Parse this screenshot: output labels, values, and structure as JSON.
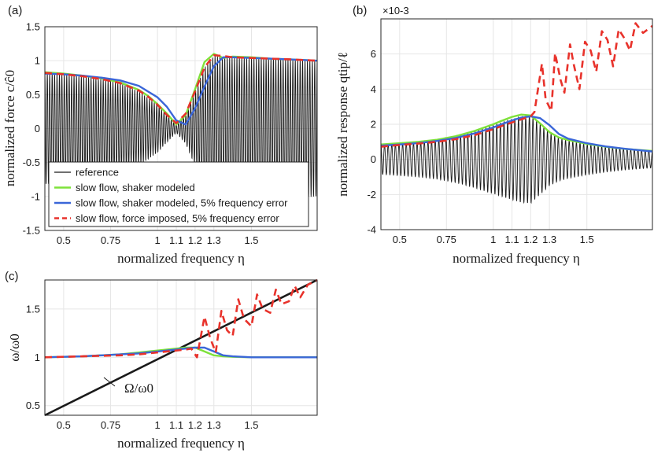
{
  "colors": {
    "reference": "#1a1a1a",
    "shaker_modeled": "#7ee23a",
    "shaker_modeled_error": "#3a66d8",
    "force_imposed_error": "#e8322b",
    "grid": "#e6e6e6"
  },
  "chart_data": [
    {
      "id": "a",
      "type": "line",
      "panel_label": "(a)",
      "xlabel": "normalized frequency η",
      "ylabel": "normalized force c/ĉ0",
      "xlim": [
        0.4,
        1.85
      ],
      "ylim": [
        -1.5,
        1.5
      ],
      "xticks": [
        0.5,
        0.75,
        1,
        1.1,
        1.2,
        1.3,
        1.5
      ],
      "xtick_labels": [
        "0.5",
        "0.75",
        "1",
        "1.1",
        "1.2",
        "1.3",
        "1.5"
      ],
      "yticks": [
        -1.5,
        -1,
        -0.5,
        0,
        0.5,
        1,
        1.5
      ],
      "ytick_labels": [
        "-1.5",
        "-1",
        "-0.5",
        "0",
        "0.5",
        "1",
        "1.5"
      ],
      "legend": {
        "placement": "bottom-left",
        "entries": [
          {
            "key": "reference",
            "label": "reference"
          },
          {
            "key": "shaker_modeled",
            "label": "slow flow, shaker modeled"
          },
          {
            "key": "shaker_modeled_error",
            "label": "slow flow, shaker modeled, 5% frequency error"
          },
          {
            "key": "force_imposed_error",
            "label": "slow flow, force imposed, 5% frequency error"
          }
        ]
      },
      "reference_oscillation": {
        "cycles": 112,
        "center": 0,
        "description": "oscillation bounded by ± envelope"
      },
      "series": [
        {
          "key": "shaker_modeled",
          "x": [
            0.4,
            0.5,
            0.6,
            0.7,
            0.8,
            0.9,
            0.95,
            1.0,
            1.05,
            1.1,
            1.15,
            1.2,
            1.25,
            1.3,
            1.35,
            1.4,
            1.5,
            1.6,
            1.7,
            1.85
          ],
          "y": [
            0.83,
            0.81,
            0.78,
            0.74,
            0.68,
            0.57,
            0.48,
            0.36,
            0.22,
            0.06,
            0.2,
            0.58,
            0.98,
            1.1,
            1.04,
            1.06,
            1.05,
            1.03,
            1.02,
            1.0
          ]
        },
        {
          "key": "shaker_modeled_error",
          "x": [
            0.4,
            0.5,
            0.6,
            0.7,
            0.8,
            0.9,
            1.0,
            1.05,
            1.1,
            1.15,
            1.2,
            1.25,
            1.3,
            1.35,
            1.4,
            1.5,
            1.6,
            1.7,
            1.85
          ],
          "y": [
            0.81,
            0.8,
            0.78,
            0.75,
            0.71,
            0.63,
            0.46,
            0.32,
            0.12,
            0.06,
            0.3,
            0.62,
            0.92,
            1.05,
            1.05,
            1.04,
            1.03,
            1.02,
            1.0
          ]
        },
        {
          "key": "force_imposed_error",
          "x": [
            0.4,
            0.5,
            0.6,
            0.7,
            0.8,
            0.9,
            0.95,
            1.0,
            1.05,
            1.1,
            1.15,
            1.2,
            1.25,
            1.3,
            1.35,
            1.4,
            1.5,
            1.6,
            1.7,
            1.85
          ],
          "y": [
            0.82,
            0.8,
            0.77,
            0.73,
            0.67,
            0.56,
            0.47,
            0.35,
            0.2,
            0.08,
            0.22,
            0.55,
            0.9,
            1.08,
            1.07,
            1.05,
            1.04,
            1.03,
            1.02,
            1.0
          ]
        }
      ],
      "reference_envelope": {
        "x": [
          0.4,
          0.5,
          0.6,
          0.7,
          0.8,
          0.9,
          1.0,
          1.05,
          1.1,
          1.15,
          1.2,
          1.25,
          1.3,
          1.35,
          1.4,
          1.5,
          1.6,
          1.7,
          1.85
        ],
        "amp": [
          0.82,
          0.8,
          0.77,
          0.73,
          0.67,
          0.55,
          0.35,
          0.2,
          0.06,
          0.22,
          0.55,
          0.9,
          1.07,
          1.06,
          1.05,
          1.04,
          1.03,
          1.02,
          1.0
        ]
      }
    },
    {
      "id": "b",
      "type": "line",
      "panel_label": "(b)",
      "xlabel": "normalized frequency η",
      "ylabel": "normalized response qtip/ℓ",
      "y_exponent": "×10-3",
      "xlim": [
        0.4,
        1.85
      ],
      "ylim": [
        -4,
        8
      ],
      "xticks": [
        0.5,
        0.75,
        1,
        1.1,
        1.2,
        1.3,
        1.5
      ],
      "xtick_labels": [
        "0.5",
        "0.75",
        "1",
        "1.1",
        "1.2",
        "1.3",
        "1.5"
      ],
      "yticks": [
        -4,
        -2,
        0,
        2,
        4,
        6
      ],
      "ytick_labels": [
        "-4",
        "-2",
        "0",
        "2",
        "4",
        "6"
      ],
      "reference_oscillation": {
        "cycles": 75,
        "center": 0,
        "description": "oscillation bounded by ± envelope"
      },
      "series": [
        {
          "key": "shaker_modeled",
          "x": [
            0.4,
            0.5,
            0.6,
            0.7,
            0.8,
            0.9,
            1.0,
            1.05,
            1.1,
            1.15,
            1.2,
            1.25,
            1.3,
            1.35,
            1.4,
            1.5,
            1.6,
            1.7,
            1.85
          ],
          "y": [
            0.85,
            0.92,
            1.0,
            1.12,
            1.32,
            1.62,
            2.0,
            2.22,
            2.42,
            2.55,
            2.5,
            2.05,
            1.55,
            1.25,
            1.1,
            0.88,
            0.72,
            0.6,
            0.48
          ]
        },
        {
          "key": "shaker_modeled_error",
          "x": [
            0.4,
            0.5,
            0.6,
            0.7,
            0.8,
            0.9,
            1.0,
            1.05,
            1.1,
            1.15,
            1.2,
            1.25,
            1.3,
            1.35,
            1.4,
            1.5,
            1.6,
            1.7,
            1.85
          ],
          "y": [
            0.78,
            0.85,
            0.93,
            1.05,
            1.22,
            1.48,
            1.82,
            2.02,
            2.22,
            2.38,
            2.45,
            2.35,
            1.95,
            1.45,
            1.18,
            0.92,
            0.74,
            0.61,
            0.45
          ]
        },
        {
          "key": "force_imposed_error",
          "x": [
            0.4,
            0.5,
            0.6,
            0.7,
            0.8,
            0.9,
            1.0,
            1.05,
            1.1,
            1.15,
            1.2,
            1.22,
            1.26,
            1.28,
            1.31,
            1.33,
            1.36,
            1.38,
            1.41,
            1.43,
            1.46,
            1.49,
            1.52,
            1.55,
            1.58,
            1.61,
            1.64,
            1.67,
            1.7,
            1.73,
            1.76,
            1.8,
            1.85
          ],
          "y": [
            0.72,
            0.82,
            0.9,
            1.0,
            1.15,
            1.38,
            1.72,
            1.92,
            2.1,
            2.28,
            2.45,
            2.7,
            5.45,
            3.4,
            2.75,
            6.05,
            4.5,
            3.8,
            6.55,
            5.4,
            4.0,
            6.7,
            6.2,
            5.0,
            7.3,
            6.8,
            5.3,
            7.4,
            6.9,
            6.2,
            7.75,
            7.2,
            7.6
          ]
        }
      ],
      "reference_envelope": {
        "x": [
          0.4,
          0.5,
          0.6,
          0.7,
          0.8,
          0.9,
          1.0,
          1.1,
          1.15,
          1.2,
          1.25,
          1.3,
          1.35,
          1.4,
          1.5,
          1.6,
          1.7,
          1.85
        ],
        "amp": [
          0.85,
          0.92,
          1.0,
          1.12,
          1.32,
          1.62,
          1.95,
          2.3,
          2.45,
          2.5,
          2.0,
          1.5,
          1.22,
          1.08,
          0.88,
          0.72,
          0.6,
          0.48
        ]
      }
    },
    {
      "id": "c",
      "type": "line",
      "panel_label": "(c)",
      "xlabel": "normalized frequency η",
      "ylabel": "ω/ω0",
      "annotation": "Ω/ω0",
      "xlim": [
        0.4,
        1.85
      ],
      "ylim": [
        0.4,
        1.8
      ],
      "xticks": [
        0.5,
        0.75,
        1,
        1.1,
        1.2,
        1.3,
        1.5
      ],
      "xtick_labels": [
        "0.5",
        "0.75",
        "1",
        "1.1",
        "1.2",
        "1.3",
        "1.5"
      ],
      "yticks": [
        0.5,
        1,
        1.5
      ],
      "ytick_labels": [
        "0.5",
        "1",
        "1.5"
      ],
      "series": [
        {
          "key": "reference",
          "x": [
            0.4,
            1.85
          ],
          "y": [
            0.4,
            1.8
          ]
        },
        {
          "key": "shaker_modeled",
          "x": [
            0.4,
            0.6,
            0.8,
            0.9,
            1.0,
            1.1,
            1.15,
            1.2,
            1.25,
            1.3,
            1.35,
            1.4,
            1.5,
            1.7,
            1.85
          ],
          "y": [
            1.0,
            1.01,
            1.03,
            1.05,
            1.07,
            1.09,
            1.1,
            1.1,
            1.06,
            1.02,
            1.01,
            1.005,
            1.0,
            1.0,
            1.0
          ]
        },
        {
          "key": "shaker_modeled_error",
          "x": [
            0.4,
            0.6,
            0.8,
            0.9,
            1.0,
            1.1,
            1.15,
            1.2,
            1.25,
            1.3,
            1.35,
            1.4,
            1.5,
            1.7,
            1.85
          ],
          "y": [
            1.0,
            1.01,
            1.03,
            1.04,
            1.06,
            1.08,
            1.09,
            1.1,
            1.1,
            1.06,
            1.02,
            1.01,
            1.0,
            1.0,
            1.0
          ]
        },
        {
          "key": "force_imposed_error",
          "x": [
            0.4,
            0.6,
            0.8,
            0.9,
            1.0,
            1.1,
            1.15,
            1.18,
            1.21,
            1.25,
            1.28,
            1.31,
            1.34,
            1.37,
            1.4,
            1.43,
            1.46,
            1.5,
            1.53,
            1.56,
            1.6,
            1.63,
            1.66,
            1.7,
            1.73,
            1.76,
            1.8,
            1.85
          ],
          "y": [
            1.0,
            1.01,
            1.02,
            1.03,
            1.05,
            1.07,
            1.08,
            1.09,
            1.0,
            1.42,
            1.2,
            1.05,
            1.48,
            1.28,
            1.22,
            1.6,
            1.4,
            1.32,
            1.65,
            1.5,
            1.46,
            1.7,
            1.55,
            1.58,
            1.74,
            1.62,
            1.75,
            1.8
          ]
        }
      ]
    }
  ]
}
